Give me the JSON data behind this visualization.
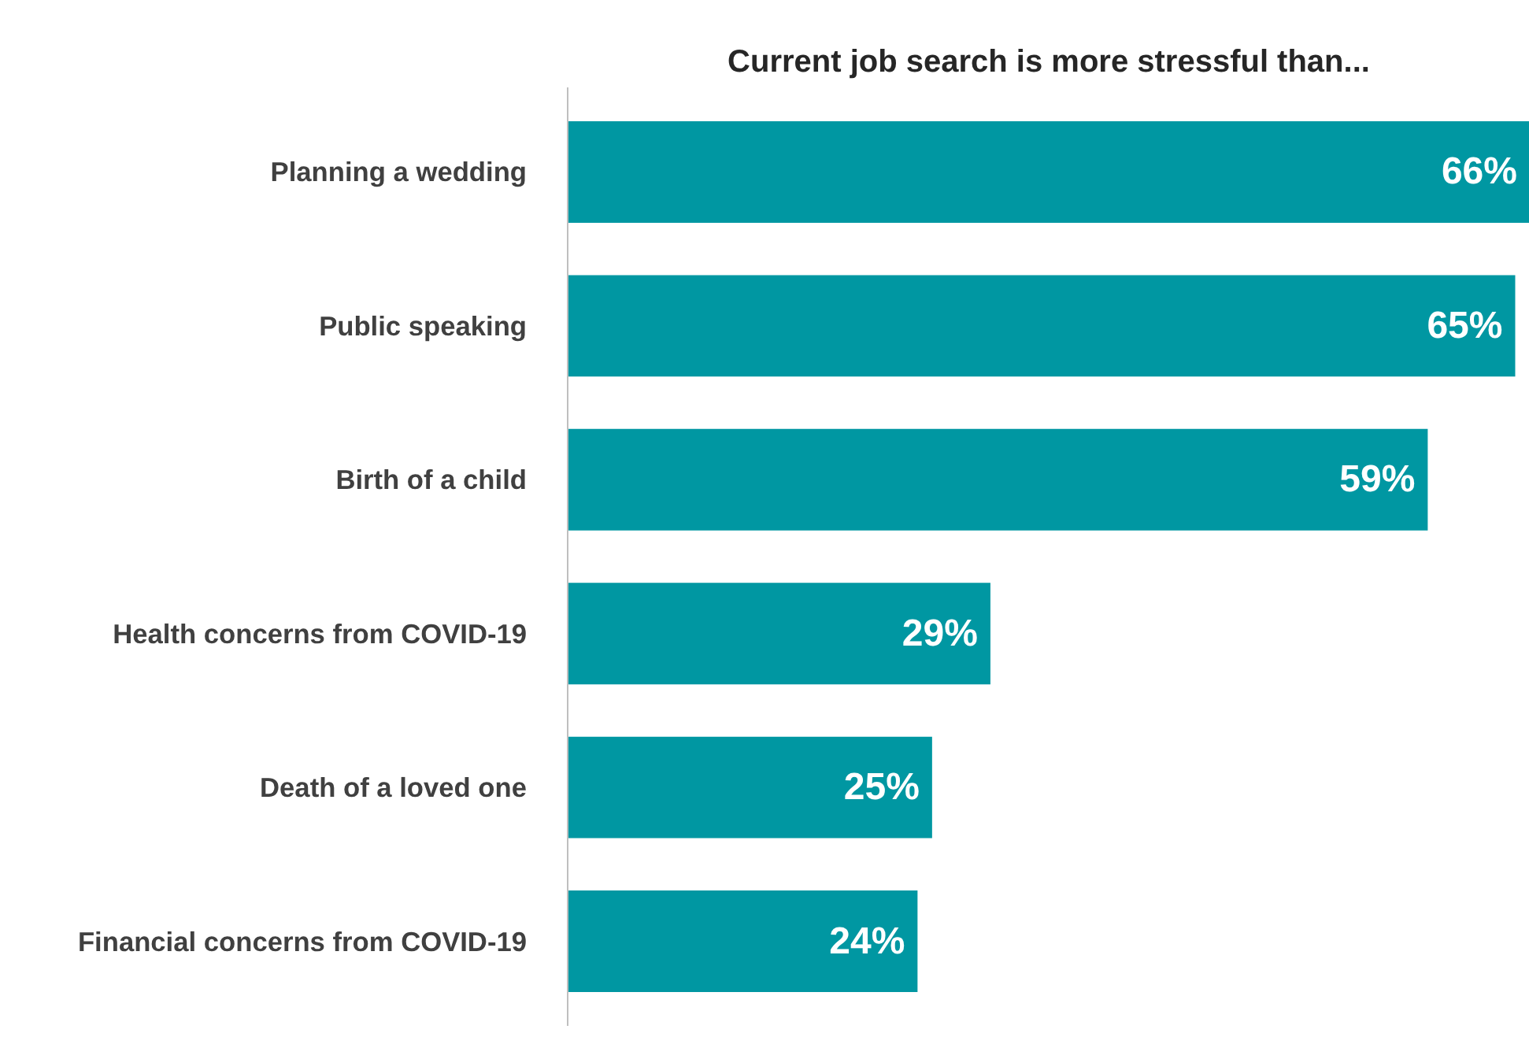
{
  "chart_data": {
    "type": "bar",
    "orientation": "horizontal",
    "title": "Current job search is more stressful than...",
    "categories": [
      "Planning a wedding",
      "Public speaking",
      "Birth of a child",
      "Health concerns from COVID-19",
      "Death of a loved one",
      "Financial concerns from COVID-19"
    ],
    "values": [
      66,
      65,
      59,
      29,
      25,
      24
    ],
    "value_labels": [
      "66%",
      "65%",
      "59%",
      "29%",
      "25%",
      "24%"
    ],
    "color": "#0097a2"
  }
}
